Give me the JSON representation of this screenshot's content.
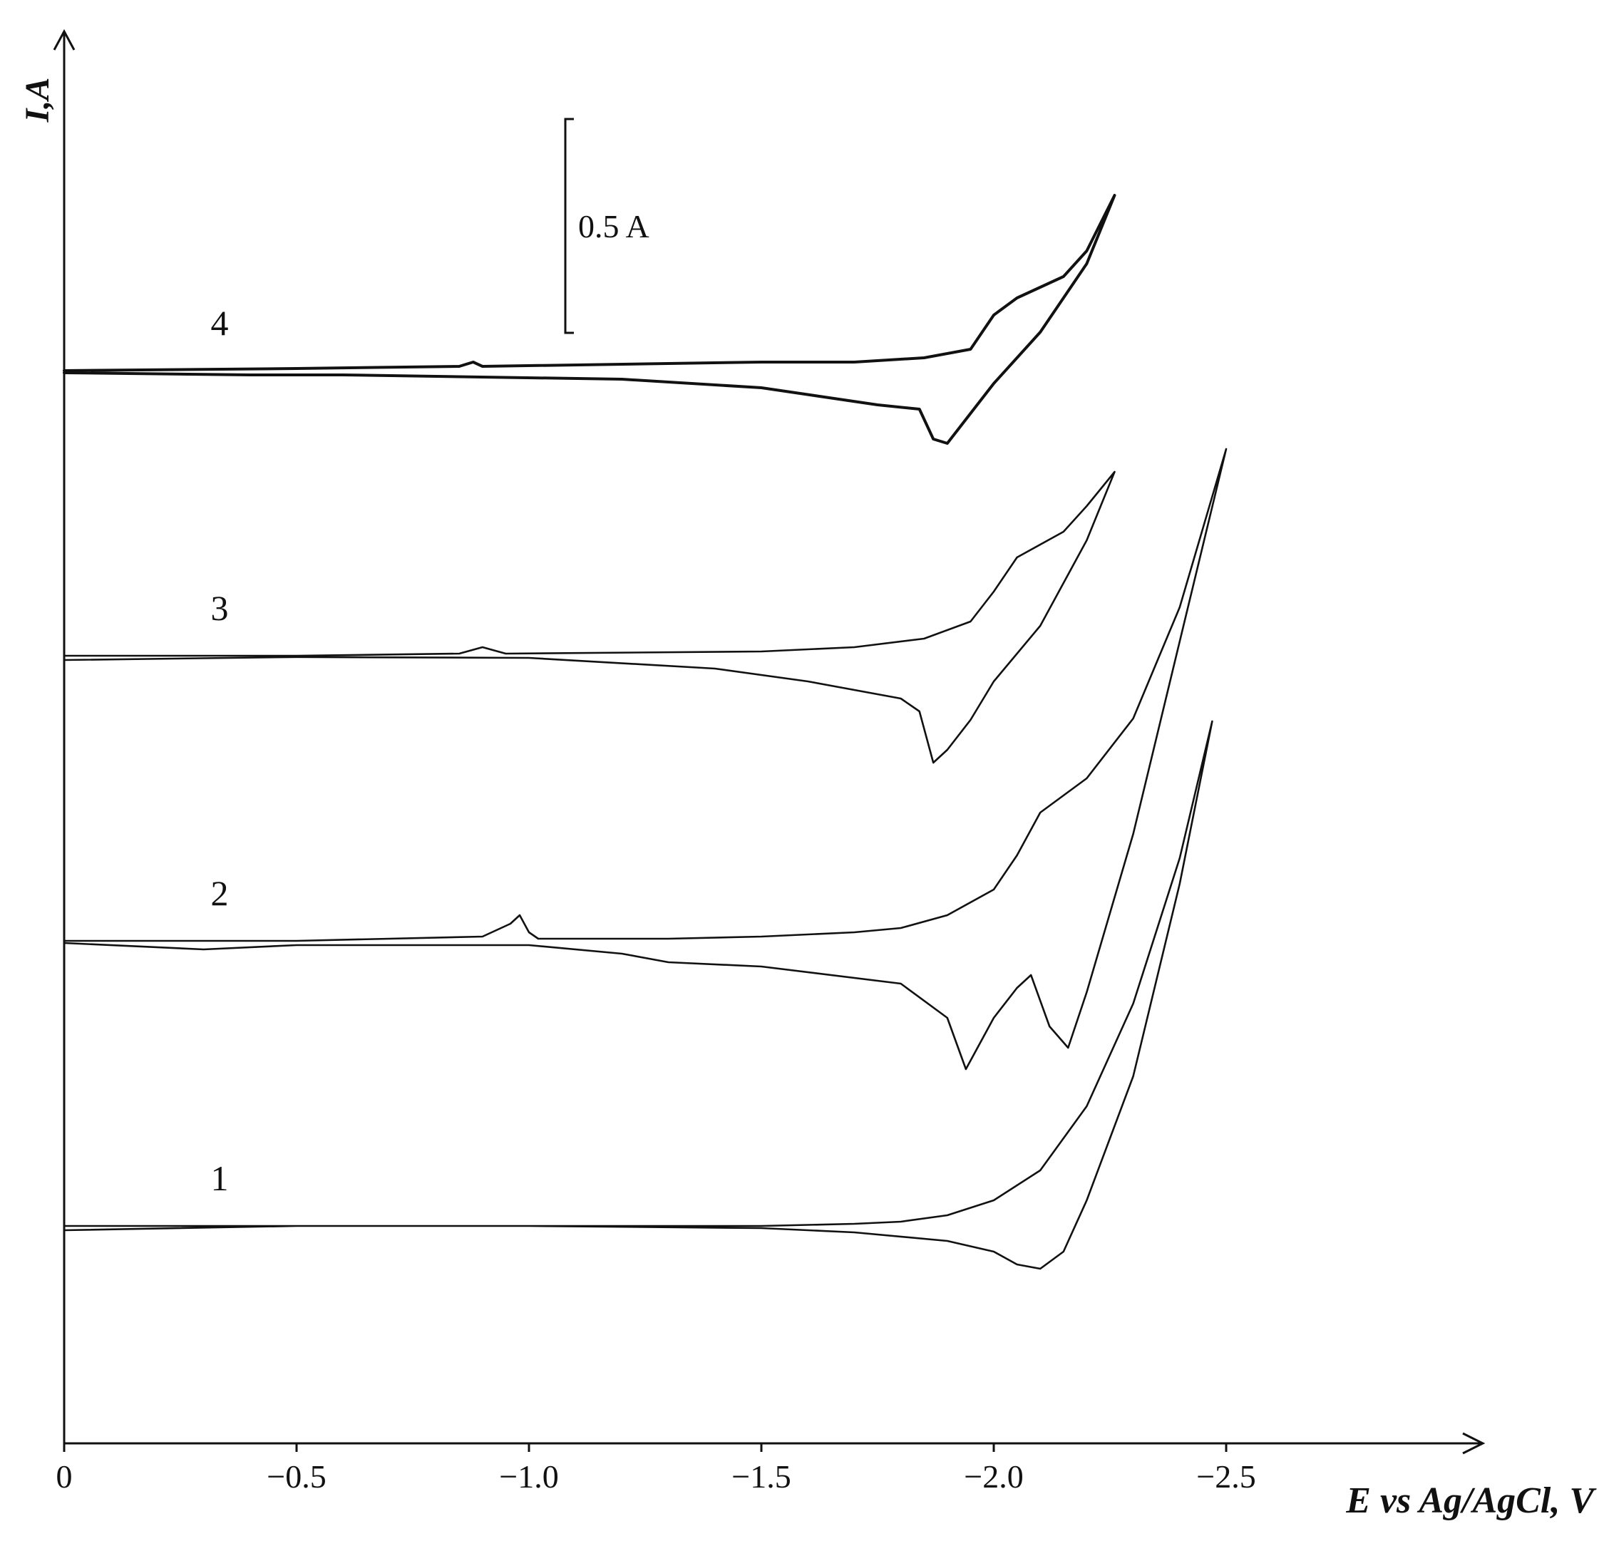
{
  "chart_data": {
    "type": "line",
    "title": "",
    "xlabel": "E vs Ag/AgCl, V",
    "ylabel": "I,A",
    "xlim": [
      0,
      -3.05
    ],
    "x_direction": "reversed (more negative potential to the right)",
    "x_ticks": [
      0,
      -0.5,
      -1.0,
      -1.5,
      -2.0,
      -2.5
    ],
    "x_tick_labels": [
      "0",
      "−0.5",
      "−1.0",
      "−1.5",
      "−2.0",
      "−2.5"
    ],
    "y_ticks": [],
    "grid": false,
    "y_units": "A",
    "y_convention": "cathodic current upward; curves stacked with vertical offsets",
    "scale_bar": {
      "value": 0.5,
      "label": "0.5 A"
    },
    "series": [
      {
        "label": "1",
        "offset": 0,
        "scan_vertex_E": -2.47,
        "forward": [
          [
            0,
            0
          ],
          [
            -0.5,
            0
          ],
          [
            -1.0,
            0
          ],
          [
            -1.5,
            0
          ],
          [
            -1.7,
            0.005
          ],
          [
            -1.8,
            0.01
          ],
          [
            -1.9,
            0.025
          ],
          [
            -2.0,
            0.06
          ],
          [
            -2.1,
            0.13
          ],
          [
            -2.2,
            0.28
          ],
          [
            -2.3,
            0.52
          ],
          [
            -2.4,
            0.86
          ],
          [
            -2.47,
            1.18
          ]
        ],
        "reverse": [
          [
            -2.47,
            1.18
          ],
          [
            -2.4,
            0.8
          ],
          [
            -2.3,
            0.35
          ],
          [
            -2.2,
            0.06
          ],
          [
            -2.15,
            -0.06
          ],
          [
            -2.1,
            -0.1
          ],
          [
            -2.05,
            -0.09
          ],
          [
            -2.0,
            -0.06
          ],
          [
            -1.9,
            -0.035
          ],
          [
            -1.7,
            -0.015
          ],
          [
            -1.5,
            -0.005
          ],
          [
            -1.0,
            0
          ],
          [
            -0.5,
            0
          ],
          [
            0,
            -0.01
          ]
        ]
      },
      {
        "label": "2",
        "offset": 1.0,
        "scan_vertex_E": -2.5,
        "forward": [
          [
            0,
            0
          ],
          [
            -0.5,
            0
          ],
          [
            -0.9,
            0.01
          ],
          [
            -0.96,
            0.04
          ],
          [
            -0.98,
            0.06
          ],
          [
            -1.0,
            0.02
          ],
          [
            -1.02,
            0.005
          ],
          [
            -1.3,
            0.005
          ],
          [
            -1.5,
            0.01
          ],
          [
            -1.7,
            0.02
          ],
          [
            -1.8,
            0.03
          ],
          [
            -1.9,
            0.06
          ],
          [
            -2.0,
            0.12
          ],
          [
            -2.05,
            0.2
          ],
          [
            -2.1,
            0.3
          ],
          [
            -2.2,
            0.38
          ],
          [
            -2.3,
            0.52
          ],
          [
            -2.4,
            0.78
          ],
          [
            -2.5,
            1.15
          ]
        ],
        "reverse": [
          [
            -2.5,
            1.15
          ],
          [
            -2.4,
            0.7
          ],
          [
            -2.3,
            0.25
          ],
          [
            -2.2,
            -0.12
          ],
          [
            -2.16,
            -0.25
          ],
          [
            -2.12,
            -0.2
          ],
          [
            -2.08,
            -0.08
          ],
          [
            -2.05,
            -0.11
          ],
          [
            -2.0,
            -0.18
          ],
          [
            -1.94,
            -0.3
          ],
          [
            -1.9,
            -0.18
          ],
          [
            -1.8,
            -0.1
          ],
          [
            -1.5,
            -0.06
          ],
          [
            -1.3,
            -0.05
          ],
          [
            -1.2,
            -0.03
          ],
          [
            -1.0,
            -0.01
          ],
          [
            -0.5,
            -0.01
          ],
          [
            -0.3,
            -0.02
          ],
          [
            0,
            -0.005
          ]
        ]
      },
      {
        "label": "3",
        "offset": 2.0,
        "scan_vertex_E": -2.26,
        "forward": [
          [
            0,
            0
          ],
          [
            -0.5,
            0
          ],
          [
            -0.85,
            0.005
          ],
          [
            -0.9,
            0.02
          ],
          [
            -0.95,
            0.005
          ],
          [
            -1.5,
            0.01
          ],
          [
            -1.7,
            0.02
          ],
          [
            -1.85,
            0.04
          ],
          [
            -1.95,
            0.08
          ],
          [
            -2.0,
            0.15
          ],
          [
            -2.05,
            0.23
          ],
          [
            -2.15,
            0.29
          ],
          [
            -2.2,
            0.35
          ],
          [
            -2.26,
            0.43
          ]
        ],
        "reverse": [
          [
            -2.26,
            0.43
          ],
          [
            -2.2,
            0.27
          ],
          [
            -2.1,
            0.07
          ],
          [
            -2.0,
            -0.06
          ],
          [
            -1.95,
            -0.15
          ],
          [
            -1.9,
            -0.22
          ],
          [
            -1.87,
            -0.25
          ],
          [
            -1.84,
            -0.13
          ],
          [
            -1.8,
            -0.1
          ],
          [
            -1.6,
            -0.06
          ],
          [
            -1.4,
            -0.03
          ],
          [
            -1.0,
            -0.005
          ],
          [
            -0.5,
            -0.003
          ],
          [
            0,
            -0.01
          ]
        ]
      },
      {
        "label": "4",
        "offset": 3.0,
        "scan_vertex_E": -2.26,
        "forward": [
          [
            0,
            0
          ],
          [
            -0.5,
            0.005
          ],
          [
            -0.85,
            0.01
          ],
          [
            -0.88,
            0.02
          ],
          [
            -0.9,
            0.01
          ],
          [
            -1.5,
            0.02
          ],
          [
            -1.7,
            0.02
          ],
          [
            -1.85,
            0.03
          ],
          [
            -1.95,
            0.05
          ],
          [
            -2.0,
            0.13
          ],
          [
            -2.05,
            0.17
          ],
          [
            -2.15,
            0.22
          ],
          [
            -2.2,
            0.28
          ],
          [
            -2.26,
            0.41
          ]
        ],
        "reverse": [
          [
            -2.26,
            0.41
          ],
          [
            -2.2,
            0.25
          ],
          [
            -2.1,
            0.09
          ],
          [
            -2.0,
            -0.03
          ],
          [
            -1.95,
            -0.1
          ],
          [
            -1.9,
            -0.17
          ],
          [
            -1.87,
            -0.16
          ],
          [
            -1.84,
            -0.09
          ],
          [
            -1.75,
            -0.08
          ],
          [
            -1.5,
            -0.04
          ],
          [
            -1.2,
            -0.02
          ],
          [
            -0.6,
            -0.01
          ],
          [
            -0.4,
            -0.01
          ],
          [
            0,
            -0.005
          ]
        ]
      }
    ]
  }
}
